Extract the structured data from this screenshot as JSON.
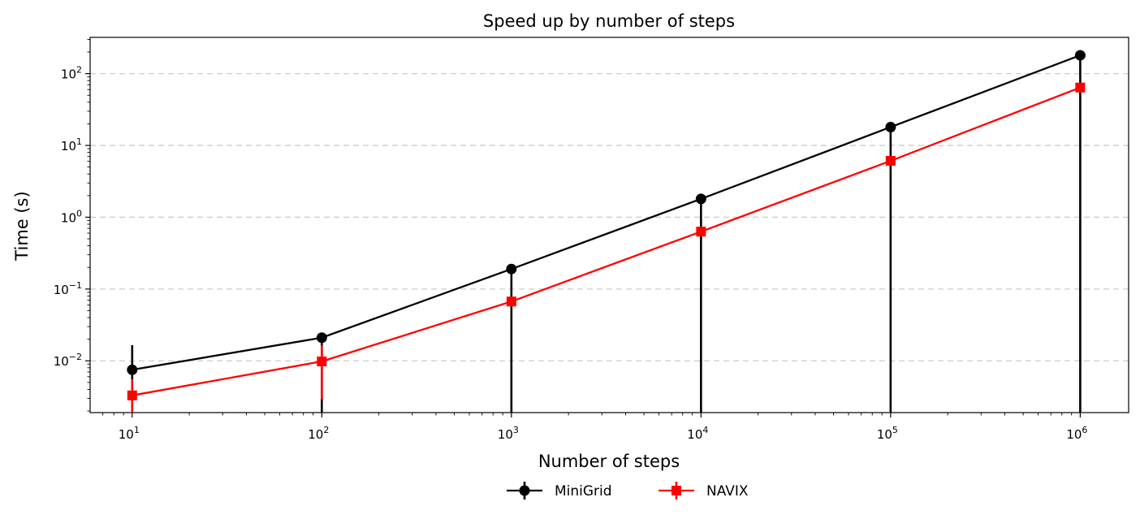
{
  "chart_data": {
    "type": "line",
    "title": "Speed up by number of steps",
    "xlabel": "Number of steps",
    "ylabel": "Time (s)",
    "x_scale": "log",
    "y_scale": "log",
    "xlim": [
      6,
      1800000
    ],
    "ylim": [
      0.0019,
      320
    ],
    "x_ticks": [
      {
        "value": 10,
        "base": "10",
        "exp": "1"
      },
      {
        "value": 100,
        "base": "10",
        "exp": "2"
      },
      {
        "value": 1000,
        "base": "10",
        "exp": "3"
      },
      {
        "value": 10000,
        "base": "10",
        "exp": "4"
      },
      {
        "value": 100000,
        "base": "10",
        "exp": "5"
      },
      {
        "value": 1000000,
        "base": "10",
        "exp": "6"
      }
    ],
    "y_ticks": [
      {
        "value": 0.01,
        "base": "10",
        "exp": "−2"
      },
      {
        "value": 0.1,
        "base": "10",
        "exp": "−1"
      },
      {
        "value": 1,
        "base": "10",
        "exp": "0"
      },
      {
        "value": 10,
        "base": "10",
        "exp": "1"
      },
      {
        "value": 100,
        "base": "10",
        "exp": "2"
      }
    ],
    "grid": {
      "y_major": true,
      "style": "dashed"
    },
    "legend_position": "bottom-center",
    "x": [
      10,
      100,
      1000,
      10000,
      100000,
      1000000
    ],
    "series": [
      {
        "name": "MiniGrid",
        "color": "#000000",
        "marker": "circle",
        "values": [
          0.0075,
          0.021,
          0.19,
          1.8,
          18,
          180
        ],
        "err_low": [
          0.0055,
          0,
          0,
          0,
          0,
          0
        ],
        "err_high": [
          0.0165,
          0.021,
          0.19,
          1.8,
          18,
          180
        ]
      },
      {
        "name": "NAVIX",
        "color": "#ff0000",
        "marker": "square",
        "values": [
          0.0033,
          0.0098,
          0.067,
          0.63,
          6.1,
          64
        ],
        "err_low": [
          0.0012,
          0.0029,
          0.067,
          0.63,
          6.1,
          64
        ],
        "err_high": [
          0.0055,
          0.0165,
          0.067,
          0.63,
          6.1,
          64
        ]
      }
    ]
  }
}
